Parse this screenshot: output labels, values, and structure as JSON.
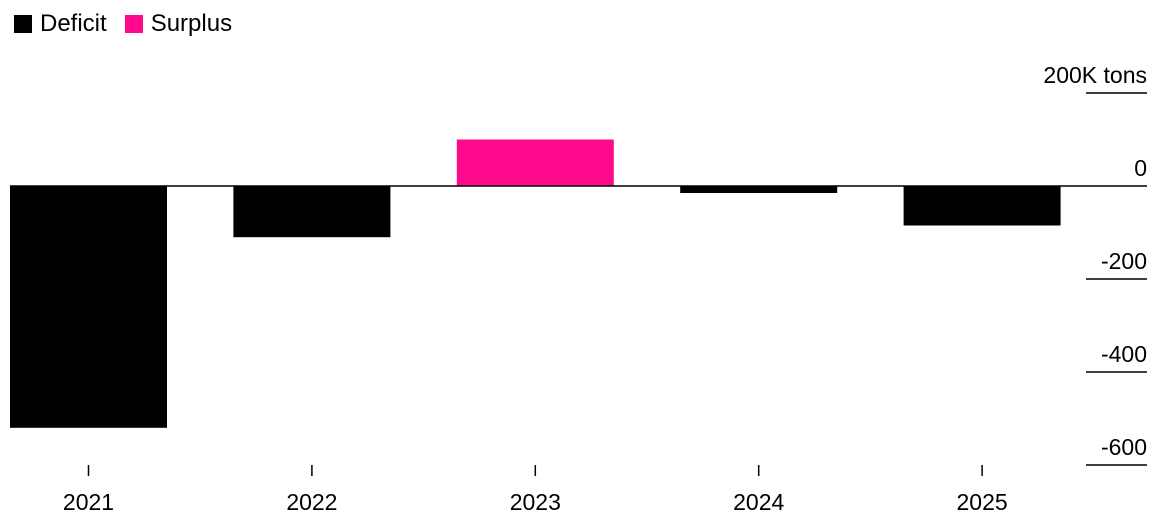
{
  "legend": [
    {
      "label": "Deficit",
      "color": "#000000"
    },
    {
      "label": "Surplus",
      "color": "#ff0a8c"
    }
  ],
  "chart_data": {
    "type": "bar",
    "categories": [
      "2021",
      "2022",
      "2023",
      "2024",
      "2025"
    ],
    "values": [
      -520,
      -110,
      100,
      -15,
      -85
    ],
    "series_colors_by_sign": {
      "negative": "#000000",
      "positive": "#ff0a8c"
    },
    "y_ticks": [
      200,
      0,
      -200,
      -400,
      -600
    ],
    "y_tick_labels": [
      "200K tons",
      "0",
      "-200",
      "-400",
      "-600"
    ],
    "ylim": [
      -600,
      200
    ],
    "y_axis_position": "right",
    "legend_position": "top-left",
    "grid": false
  }
}
